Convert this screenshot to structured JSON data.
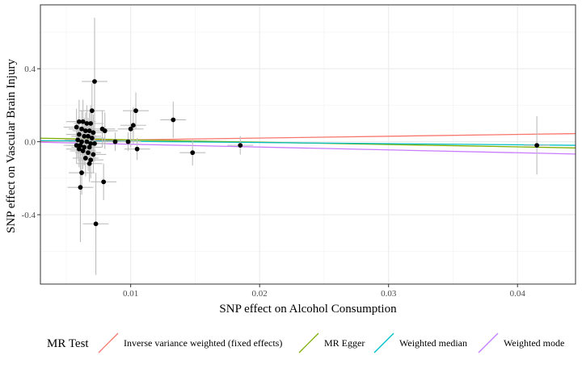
{
  "chart_data": {
    "type": "scatter",
    "title": "",
    "xlabel": "SNP effect on Alcohol Consumption",
    "ylabel": "SNP effect on Vascular Brain Injury",
    "xlim": [
      0.003,
      0.0445
    ],
    "ylim": [
      -0.78,
      0.75
    ],
    "x_ticks": [
      0.01,
      0.02,
      0.03,
      0.04
    ],
    "x_tick_labels": [
      "0.01",
      "0.02",
      "0.03",
      "0.04"
    ],
    "y_ticks": [
      -0.4,
      0.0,
      0.4
    ],
    "y_tick_labels": [
      "-0.4",
      "0.0",
      "0.4"
    ],
    "grid": true,
    "legend": {
      "position": "bottom",
      "title": "MR Test",
      "entries": [
        {
          "label": "Inverse variance weighted (fixed effects)",
          "color": "#F8766D"
        },
        {
          "label": "MR Egger",
          "color": "#7CAE00"
        },
        {
          "label": "Weighted median",
          "color": "#00BFC4"
        },
        {
          "label": "Weighted mode",
          "color": "#C77CFF"
        }
      ]
    },
    "lines": [
      {
        "label": "Inverse variance weighted (fixed effects)",
        "color": "#F8766D",
        "intercept": 0.0,
        "slope": 1.0
      },
      {
        "label": "MR Egger",
        "color": "#7CAE00",
        "intercept": 0.023,
        "slope": -1.28
      },
      {
        "label": "Weighted median",
        "color": "#00BFC4",
        "intercept": 0.008,
        "slope": -0.62
      },
      {
        "label": "Weighted mode",
        "color": "#C77CFF",
        "intercept": 0.002,
        "slope": -1.56
      }
    ],
    "points": [
      {
        "x": 0.0072,
        "y": 0.33,
        "xse": 0.001,
        "yse": 0.35
      },
      {
        "x": 0.007,
        "y": 0.17,
        "xse": 0.001,
        "yse": 0.15
      },
      {
        "x": 0.0063,
        "y": 0.11,
        "xse": 0.001,
        "yse": 0.12
      },
      {
        "x": 0.0066,
        "y": 0.1,
        "xse": 0.001,
        "yse": 0.1
      },
      {
        "x": 0.0069,
        "y": 0.1,
        "xse": 0.001,
        "yse": 0.1
      },
      {
        "x": 0.006,
        "y": 0.11,
        "xse": 0.001,
        "yse": 0.12
      },
      {
        "x": 0.0058,
        "y": 0.08,
        "xse": 0.001,
        "yse": 0.1
      },
      {
        "x": 0.0062,
        "y": 0.07,
        "xse": 0.001,
        "yse": 0.1
      },
      {
        "x": 0.0065,
        "y": 0.06,
        "xse": 0.001,
        "yse": 0.1
      },
      {
        "x": 0.0068,
        "y": 0.06,
        "xse": 0.001,
        "yse": 0.1
      },
      {
        "x": 0.0071,
        "y": 0.05,
        "xse": 0.001,
        "yse": 0.1
      },
      {
        "x": 0.006,
        "y": 0.04,
        "xse": 0.001,
        "yse": 0.1
      },
      {
        "x": 0.0064,
        "y": 0.03,
        "xse": 0.001,
        "yse": 0.1
      },
      {
        "x": 0.0067,
        "y": 0.03,
        "xse": 0.001,
        "yse": 0.1
      },
      {
        "x": 0.007,
        "y": 0.02,
        "xse": 0.001,
        "yse": 0.1
      },
      {
        "x": 0.0059,
        "y": 0.01,
        "xse": 0.001,
        "yse": 0.1
      },
      {
        "x": 0.0062,
        "y": 0.0,
        "xse": 0.001,
        "yse": 0.1
      },
      {
        "x": 0.0066,
        "y": 0.0,
        "xse": 0.001,
        "yse": 0.1
      },
      {
        "x": 0.0069,
        "y": -0.01,
        "xse": 0.001,
        "yse": 0.1
      },
      {
        "x": 0.0072,
        "y": -0.01,
        "xse": 0.001,
        "yse": 0.1
      },
      {
        "x": 0.0058,
        "y": -0.02,
        "xse": 0.001,
        "yse": 0.1
      },
      {
        "x": 0.0061,
        "y": -0.02,
        "xse": 0.001,
        "yse": 0.1
      },
      {
        "x": 0.0064,
        "y": -0.03,
        "xse": 0.001,
        "yse": 0.1
      },
      {
        "x": 0.0068,
        "y": -0.03,
        "xse": 0.001,
        "yse": 0.1
      },
      {
        "x": 0.006,
        "y": -0.04,
        "xse": 0.001,
        "yse": 0.1
      },
      {
        "x": 0.0063,
        "y": -0.05,
        "xse": 0.001,
        "yse": 0.1
      },
      {
        "x": 0.0067,
        "y": -0.06,
        "xse": 0.001,
        "yse": 0.1
      },
      {
        "x": 0.0071,
        "y": -0.07,
        "xse": 0.001,
        "yse": 0.1
      },
      {
        "x": 0.0065,
        "y": -0.09,
        "xse": 0.001,
        "yse": 0.1
      },
      {
        "x": 0.0069,
        "y": -0.1,
        "xse": 0.001,
        "yse": 0.1
      },
      {
        "x": 0.0068,
        "y": -0.12,
        "xse": 0.001,
        "yse": 0.1
      },
      {
        "x": 0.0062,
        "y": -0.17,
        "xse": 0.001,
        "yse": 0.12
      },
      {
        "x": 0.0061,
        "y": -0.25,
        "xse": 0.001,
        "yse": 0.3
      },
      {
        "x": 0.0073,
        "y": -0.45,
        "xse": 0.001,
        "yse": 0.28
      },
      {
        "x": 0.0078,
        "y": 0.07,
        "xse": 0.001,
        "yse": 0.1
      },
      {
        "x": 0.008,
        "y": 0.06,
        "xse": 0.001,
        "yse": 0.1
      },
      {
        "x": 0.0079,
        "y": -0.22,
        "xse": 0.001,
        "yse": 0.1
      },
      {
        "x": 0.0088,
        "y": 0.0,
        "xse": 0.001,
        "yse": 0.05
      },
      {
        "x": 0.0098,
        "y": 0.0,
        "xse": 0.001,
        "yse": 0.05
      },
      {
        "x": 0.01,
        "y": 0.07,
        "xse": 0.001,
        "yse": 0.1
      },
      {
        "x": 0.0102,
        "y": 0.09,
        "xse": 0.001,
        "yse": 0.1
      },
      {
        "x": 0.0104,
        "y": 0.17,
        "xse": 0.001,
        "yse": 0.1
      },
      {
        "x": 0.0105,
        "y": -0.04,
        "xse": 0.001,
        "yse": 0.06
      },
      {
        "x": 0.0133,
        "y": 0.12,
        "xse": 0.001,
        "yse": 0.1
      },
      {
        "x": 0.0148,
        "y": -0.06,
        "xse": 0.001,
        "yse": 0.07
      },
      {
        "x": 0.0185,
        "y": -0.02,
        "xse": 0.001,
        "yse": 0.05
      },
      {
        "x": 0.0415,
        "y": -0.02,
        "xse": 0.001,
        "yse": 0.16
      }
    ]
  }
}
